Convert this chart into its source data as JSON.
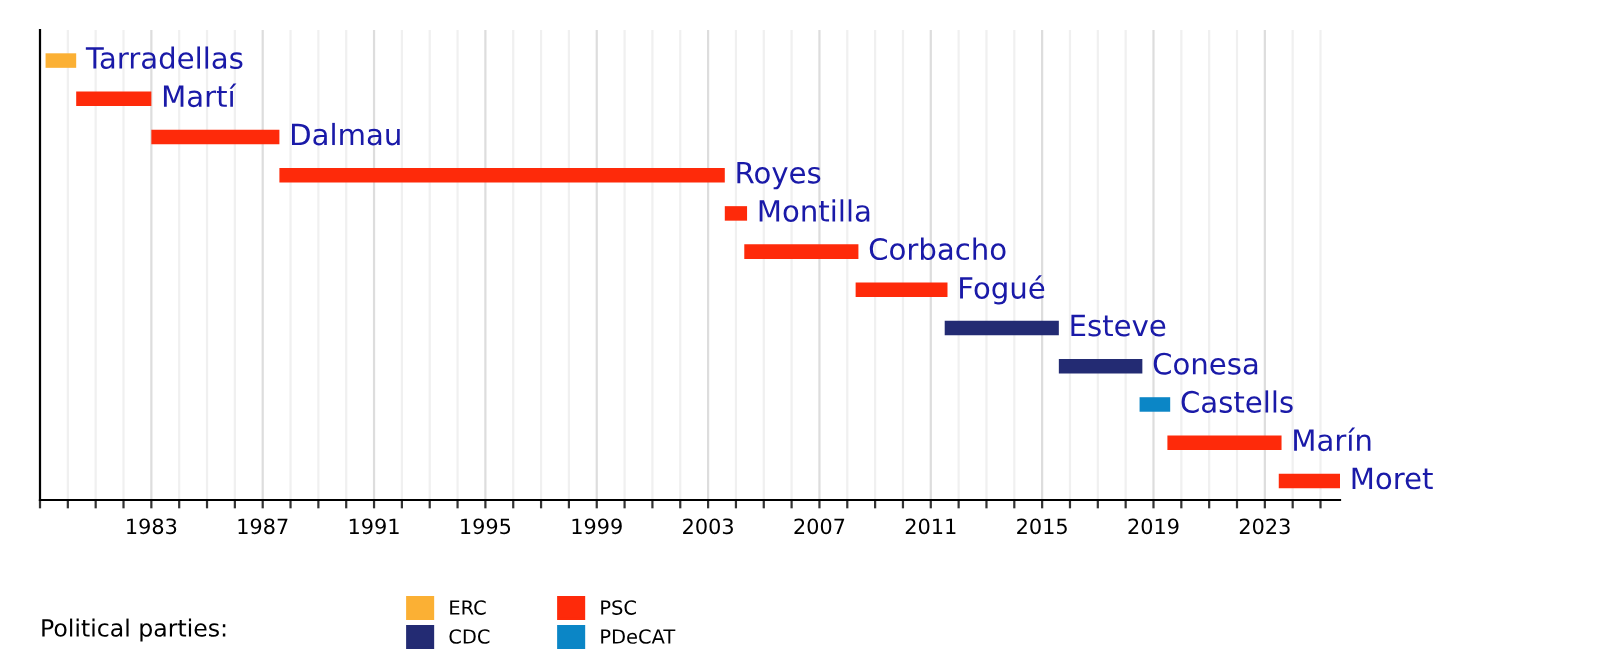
{
  "chart_data": {
    "type": "bar",
    "orientation": "horizontal",
    "categories": [
      "Tarradellas",
      "Martí",
      "Dalmau",
      "Royes",
      "Montilla",
      "Corbacho",
      "Fogué",
      "Esteve",
      "Conesa",
      "Castells",
      "Marín",
      "Moret"
    ],
    "series": [
      {
        "name": "ERC",
        "color": "#fbb034",
        "base": [
          1979.2,
          null,
          null,
          null,
          null,
          null,
          null,
          null,
          null,
          null,
          null,
          null
        ],
        "values": [
          1.1,
          null,
          null,
          null,
          null,
          null,
          null,
          null,
          null,
          null,
          null,
          null
        ]
      },
      {
        "name": "CDC",
        "color": "#232b73",
        "base": [
          null,
          null,
          null,
          null,
          null,
          null,
          null,
          2011.5,
          2015.6,
          null,
          null,
          null
        ],
        "values": [
          null,
          null,
          null,
          null,
          null,
          null,
          null,
          4.1,
          3.0,
          null,
          null,
          null
        ]
      },
      {
        "name": "PSC",
        "color": "#fe2a0a",
        "base": [
          null,
          1980.3,
          1983.0,
          1987.6,
          2003.6,
          2004.3,
          2008.3,
          null,
          null,
          null,
          2019.5,
          2023.5
        ],
        "values": [
          null,
          2.7,
          4.6,
          16.0,
          0.8,
          4.1,
          3.3,
          null,
          null,
          null,
          4.1,
          2.2
        ]
      },
      {
        "name": "PDeCAT",
        "color": "#0b86c6",
        "base": [
          null,
          null,
          null,
          null,
          null,
          null,
          null,
          null,
          null,
          2018.5,
          null,
          null
        ],
        "values": [
          null,
          null,
          null,
          null,
          null,
          null,
          null,
          null,
          null,
          1.1,
          null,
          null
        ]
      }
    ],
    "legend_title": "Political parties:",
    "legend": "bottom",
    "xlim": [
      1979,
      2025.7
    ],
    "xticks": [
      {
        "value": 1979,
        "label": null
      },
      {
        "value": 1980,
        "label": null
      },
      {
        "value": 1981,
        "label": null
      },
      {
        "value": 1982,
        "label": null
      },
      1983,
      {
        "value": 1984,
        "label": null
      },
      {
        "value": 1985,
        "label": null
      },
      {
        "value": 1986,
        "label": null
      },
      1987,
      {
        "value": 1988,
        "label": null
      },
      {
        "value": 1989,
        "label": null
      },
      {
        "value": 1990,
        "label": null
      },
      1991,
      {
        "value": 1992,
        "label": null
      },
      {
        "value": 1993,
        "label": null
      },
      {
        "value": 1994,
        "label": null
      },
      1995,
      {
        "value": 1996,
        "label": null
      },
      {
        "value": 1997,
        "label": null
      },
      {
        "value": 1998,
        "label": null
      },
      1999,
      {
        "value": 2000,
        "label": null
      },
      {
        "value": 2001,
        "label": null
      },
      {
        "value": 2002,
        "label": null
      },
      2003,
      {
        "value": 2004,
        "label": null
      },
      {
        "value": 2005,
        "label": null
      },
      {
        "value": 2006,
        "label": null
      },
      2007,
      {
        "value": 2008,
        "label": null
      },
      {
        "value": 2009,
        "label": null
      },
      {
        "value": 2010,
        "label": null
      },
      2011,
      {
        "value": 2012,
        "label": null
      },
      {
        "value": 2013,
        "label": null
      },
      {
        "value": 2014,
        "label": null
      },
      2015,
      {
        "value": 2016,
        "label": null
      },
      {
        "value": 2017,
        "label": null
      },
      {
        "value": 2018,
        "label": null
      },
      2019,
      {
        "value": 2020,
        "label": null
      },
      {
        "value": 2021,
        "label": null
      },
      {
        "value": 2022,
        "label": null
      },
      2023,
      {
        "value": 2024,
        "label": null
      },
      {
        "value": 2025,
        "label": null
      }
    ],
    "grid": "x"
  }
}
